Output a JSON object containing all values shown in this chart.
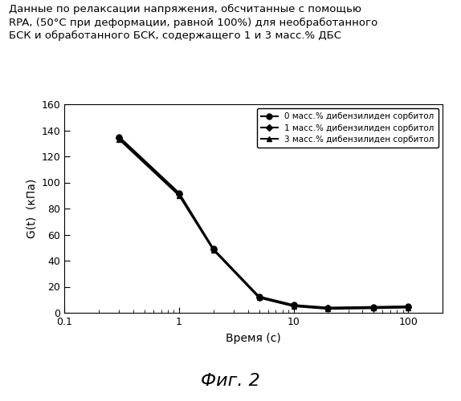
{
  "title_line1": "Данные по релаксации напряжения, обсчитанные с помощью",
  "title_line2": "RPA, (50°C при деформации, равной 100%) для необработанного",
  "title_line3": "БСК и обработанного БСК, содержащего 1 и 3 масс.% ДБС",
  "xlabel": "Время (с)",
  "ylabel": "G(t)  (кПа)",
  "fig_label": "Фиг. 2",
  "xlim": [
    0.1,
    200
  ],
  "ylim": [
    0,
    160
  ],
  "yticks": [
    0,
    20,
    40,
    60,
    80,
    100,
    120,
    140,
    160
  ],
  "xticks": [
    0.1,
    1,
    10,
    100
  ],
  "xtick_labels": [
    "0.1",
    "1",
    "10",
    "100"
  ],
  "series": [
    {
      "label": "0 масс.% дибензилиден сорбитол",
      "x": [
        0.3,
        1.0,
        2.0,
        5.0,
        10.0,
        20.0,
        50.0,
        100.0
      ],
      "y": [
        135.0,
        92.0,
        49.0,
        12.5,
        6.0,
        4.0,
        4.5,
        5.0
      ],
      "color": "#000000",
      "marker": "o",
      "markersize": 5,
      "linewidth": 1.5
    },
    {
      "label": "1 масс.% дибензилиден сорбитол",
      "x": [
        0.3,
        1.0,
        2.0,
        5.0,
        10.0,
        20.0,
        50.0,
        100.0
      ],
      "y": [
        134.0,
        91.0,
        48.5,
        12.0,
        5.5,
        3.5,
        4.0,
        4.5
      ],
      "color": "#000000",
      "marker": "D",
      "markersize": 4,
      "linewidth": 1.5
    },
    {
      "label": "3 масс.% дибензилиден сорбитол",
      "x": [
        0.3,
        1.0,
        2.0,
        5.0,
        10.0,
        20.0,
        50.0,
        100.0
      ],
      "y": [
        133.0,
        90.0,
        48.0,
        11.5,
        5.0,
        3.0,
        3.5,
        4.0
      ],
      "color": "#000000",
      "marker": "^",
      "markersize": 5,
      "linewidth": 1.5
    }
  ],
  "background_color": "#ffffff",
  "legend_fontsize": 7.5,
  "axis_fontsize": 9,
  "title_fontsize": 9.5,
  "figlabel_fontsize": 16
}
